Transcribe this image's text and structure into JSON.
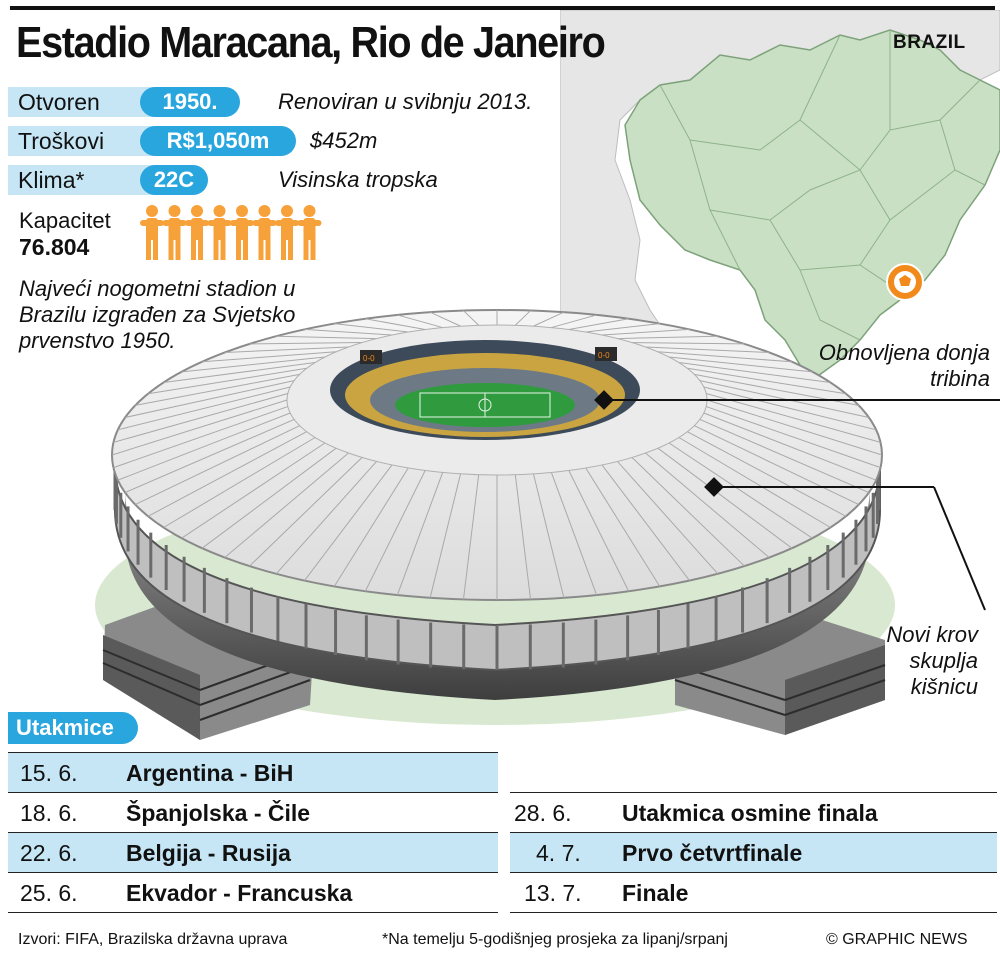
{
  "title": "Estadio Maracana, Rio de Janeiro",
  "country": "BRAZIL",
  "facts": [
    {
      "label": "Otvoren",
      "value": "1950.",
      "note": "Renoviran u svibnju 2013."
    },
    {
      "label": "Troškovi",
      "value": "R$1,050m",
      "note": "$452m"
    },
    {
      "label": "Klima*",
      "value": "22C",
      "note": "Visinska tropska"
    }
  ],
  "capacity": {
    "label": "Kapacitet",
    "value": "76.804",
    "icon": "people-chain-icon"
  },
  "description": "Najveći nogometni stadion u Brazilu izgrađen za Svjetsko prvenstvo 1950.",
  "callouts": {
    "stand": "Obnovljena donja tribina",
    "roof": "Novi krov skuplja kišnicu"
  },
  "matches_heading": "Utakmice",
  "matches_left": [
    {
      "date": "15. 6.",
      "name": "Argentina - BiH"
    },
    {
      "date": "18. 6.",
      "name": "Španjolska - Čile"
    },
    {
      "date": "22. 6.",
      "name": "Belgija - Rusija"
    },
    {
      "date": "25. 6.",
      "name": "Ekvador - Francuska"
    }
  ],
  "matches_right": [
    {
      "date": "28. 6.",
      "name": "Utakmica osmine finala"
    },
    {
      "date": "4. 7.",
      "name": "Prvo četvrtfinale"
    },
    {
      "date": "13. 7.",
      "name": "Finale"
    }
  ],
  "footer": {
    "sources": "Izvori: FIFA, Brazilska državna uprava",
    "note": "*Na temelju 5-godišnjeg prosjeka za lipanj/srpanj",
    "credit": "© GRAPHIC NEWS"
  },
  "colors": {
    "accent": "#2aa6de",
    "highlight": "#c6e6f5",
    "people": "#f7a13a",
    "map_land": "#c9e0c5"
  }
}
